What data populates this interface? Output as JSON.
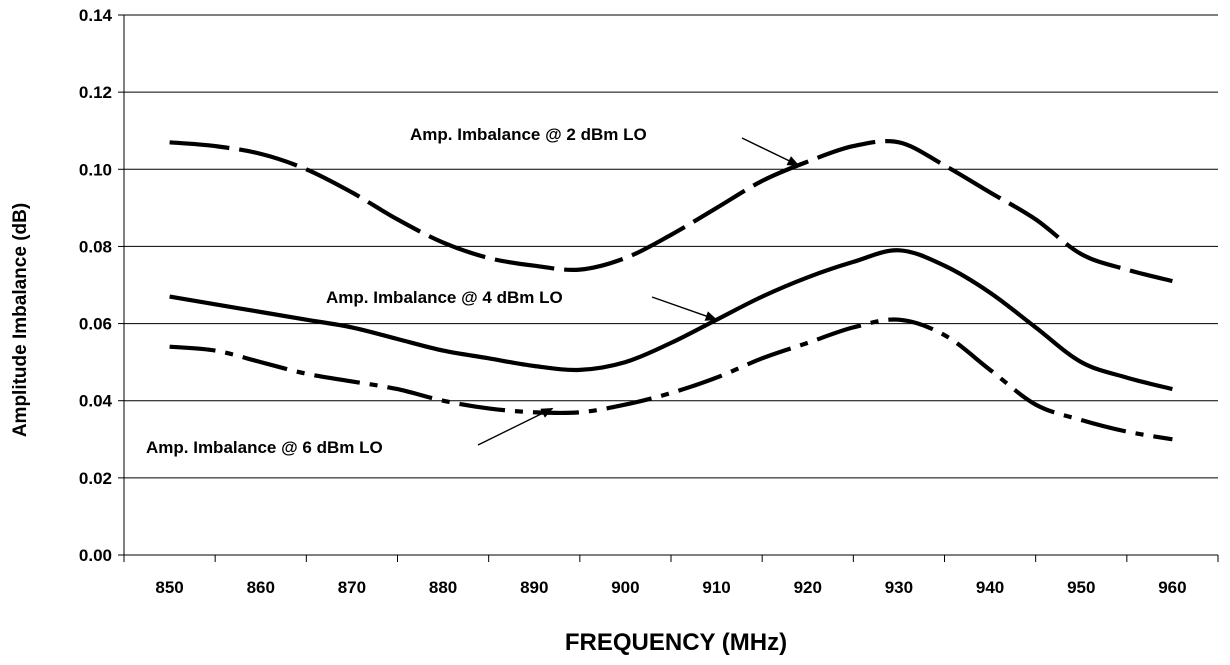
{
  "chart_data": {
    "type": "line",
    "title": "",
    "xlabel": "FREQUENCY (MHz)",
    "ylabel": "Amplitude Imbalance (dB)",
    "categories": [
      "850",
      "860",
      "870",
      "880",
      "890",
      "900",
      "910",
      "920",
      "930",
      "940",
      "950",
      "960"
    ],
    "y_ticks": [
      "0.00",
      "0.02",
      "0.04",
      "0.06",
      "0.08",
      "0.10",
      "0.12",
      "0.14"
    ],
    "ylim": [
      0,
      0.14
    ],
    "grid": true,
    "series": [
      {
        "name": "Amp. Imbalance @ 2 dBm LO",
        "style": "dashed",
        "x": [
          850,
          855,
          860,
          865,
          870,
          875,
          880,
          885,
          890,
          895,
          900,
          905,
          910,
          915,
          920,
          925,
          930,
          935,
          940,
          945,
          950,
          955,
          960
        ],
        "y": [
          0.107,
          0.106,
          0.104,
          0.1,
          0.094,
          0.087,
          0.081,
          0.077,
          0.075,
          0.074,
          0.077,
          0.083,
          0.09,
          0.097,
          0.102,
          0.106,
          0.107,
          0.101,
          0.094,
          0.087,
          0.078,
          0.074,
          0.071
        ]
      },
      {
        "name": "Amp. Imbalance @ 4 dBm LO",
        "style": "solid",
        "x": [
          850,
          855,
          860,
          865,
          870,
          875,
          880,
          885,
          890,
          895,
          900,
          905,
          910,
          915,
          920,
          925,
          930,
          935,
          940,
          945,
          950,
          955,
          960
        ],
        "y": [
          0.067,
          0.065,
          0.063,
          0.061,
          0.059,
          0.056,
          0.053,
          0.051,
          0.049,
          0.048,
          0.05,
          0.055,
          0.061,
          0.067,
          0.072,
          0.076,
          0.079,
          0.075,
          0.068,
          0.059,
          0.05,
          0.046,
          0.043
        ]
      },
      {
        "name": "Amp. Imbalance @ 6 dBm LO",
        "style": "dash-dot",
        "x": [
          850,
          855,
          860,
          865,
          870,
          875,
          880,
          885,
          890,
          895,
          900,
          905,
          910,
          915,
          920,
          925,
          930,
          935,
          940,
          945,
          950,
          955,
          960
        ],
        "y": [
          0.054,
          0.053,
          0.05,
          0.047,
          0.045,
          0.043,
          0.04,
          0.038,
          0.037,
          0.037,
          0.039,
          0.042,
          0.046,
          0.051,
          0.055,
          0.059,
          0.061,
          0.057,
          0.048,
          0.039,
          0.035,
          0.032,
          0.03
        ]
      }
    ],
    "annotations": [
      {
        "text": "Amp. Imbalance @ 2 dBm LO",
        "series": 0,
        "x": 919,
        "y": 0.101
      },
      {
        "text": "Amp. Imbalance @ 4 dBm LO",
        "series": 1,
        "x": 910,
        "y": 0.061
      },
      {
        "text": "Amp. Imbalance @ 6 dBm LO",
        "series": 2,
        "x": 892,
        "y": 0.038
      }
    ]
  }
}
